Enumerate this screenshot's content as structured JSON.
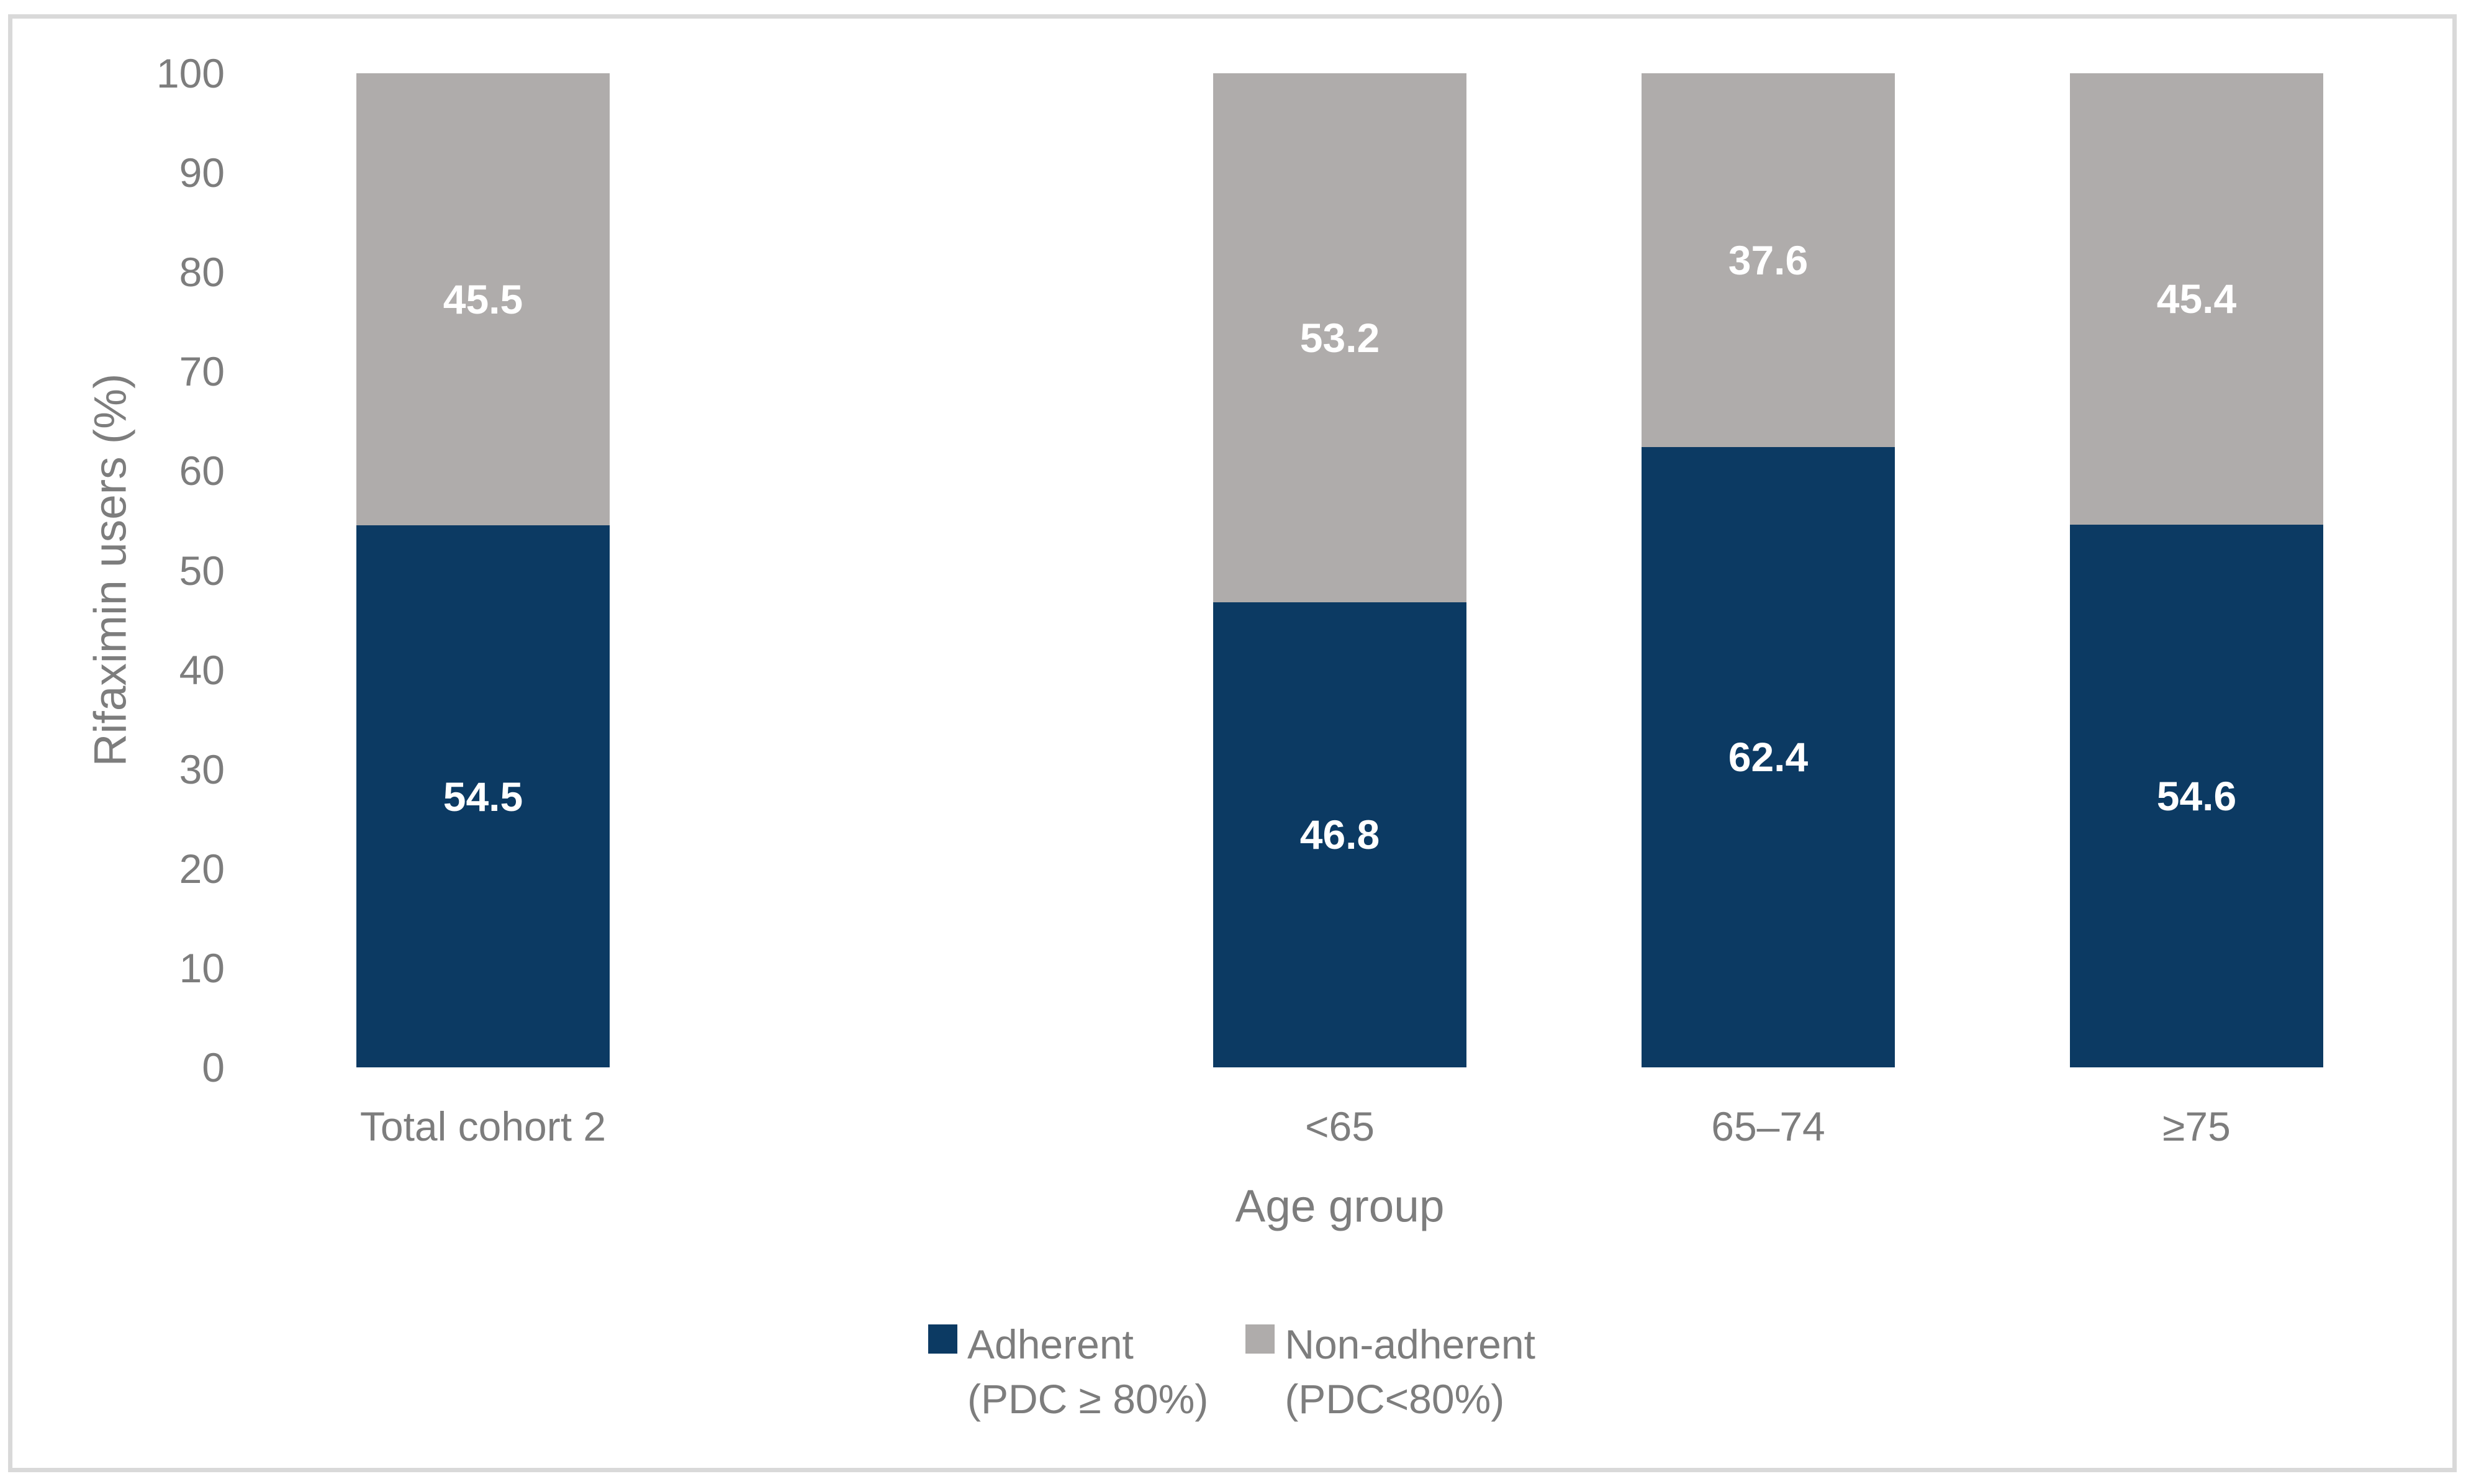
{
  "chart_data": {
    "type": "bar",
    "subtype": "stacked-100-percent",
    "title": "",
    "xlabel": "Age group",
    "ylabel": "Rifaximin users (%)",
    "ylim": [
      0,
      100
    ],
    "yticks": [
      0,
      10,
      20,
      30,
      40,
      50,
      60,
      70,
      80,
      90,
      100
    ],
    "grid": false,
    "axes_lines": false,
    "legend_position": "bottom-center",
    "value_labels": true,
    "categories": [
      "Total cohort 2",
      "<65",
      "65–74",
      "≥75"
    ],
    "category_slots": [
      0,
      2,
      3,
      4
    ],
    "slot_count": 5,
    "series": [
      {
        "name": "Adherent (PDC ≥ 80%)",
        "legend_lines": [
          "Adherent",
          "(PDC ≥ 80%)"
        ],
        "color": "#0C3A63",
        "values": [
          54.5,
          46.8,
          62.4,
          54.6
        ]
      },
      {
        "name": "Non-adherent (PDC<80%)",
        "legend_lines": [
          "Non-adherent",
          "(PDC<80%)"
        ],
        "color": "#AFACAB",
        "values": [
          45.5,
          53.2,
          37.6,
          45.4
        ]
      }
    ],
    "colors": {
      "axis_text": "#7D7D7D",
      "value_label_text": "#FFFFFF",
      "frame_border": "#D9D9D9",
      "background": "#FFFFFF"
    }
  }
}
